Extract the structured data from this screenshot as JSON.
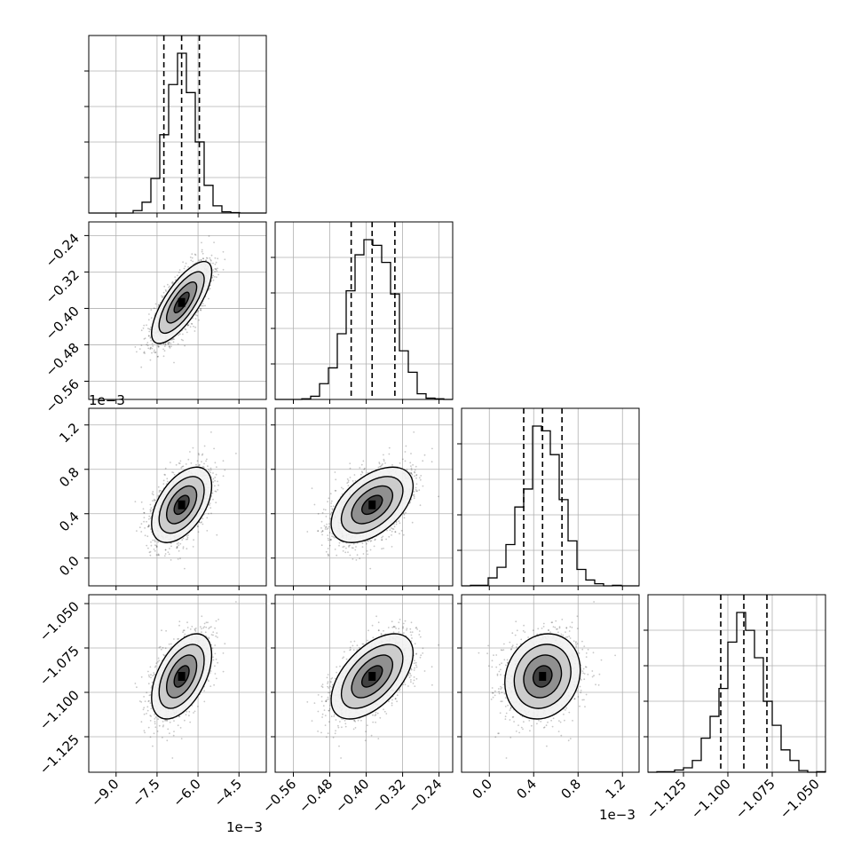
{
  "chart_data": {
    "type": "corner",
    "grid": true,
    "parameters": [
      {
        "range": [
          -10.0,
          -3.5
        ],
        "ticks": [
          -9.0,
          -7.5,
          -6.0,
          -4.5
        ],
        "tick_labels": [
          "−9.0",
          "−7.5",
          "−6.0",
          "−4.5"
        ],
        "offset_label": "1e−3",
        "mean": -6.6,
        "sd": 0.55,
        "quantiles": [
          -7.25,
          -6.6,
          -5.95
        ]
      },
      {
        "range": [
          -0.6,
          -0.21
        ],
        "ticks": [
          -0.56,
          -0.48,
          -0.4,
          -0.32,
          -0.24
        ],
        "tick_labels": [
          "−0.56",
          "−0.48",
          "−0.40",
          "−0.32",
          "−0.24"
        ],
        "offset_label": "1e−3",
        "mean": -0.387,
        "sd": 0.045,
        "quantiles": [
          -0.433,
          -0.387,
          -0.337
        ]
      },
      {
        "range": [
          -0.25,
          1.35
        ],
        "ticks": [
          0.0,
          0.4,
          0.8,
          1.2
        ],
        "tick_labels": [
          "0.0",
          "0.4",
          "0.8",
          "1.2"
        ],
        "offset_label": "1e−3",
        "mean": 0.48,
        "sd": 0.17,
        "quantiles": [
          0.31,
          0.48,
          0.655
        ]
      },
      {
        "range": [
          -1.145,
          -1.045
        ],
        "ticks": [
          -1.125,
          -1.1,
          -1.075,
          -1.05
        ],
        "tick_labels": [
          "−1.125",
          "−1.100",
          "−1.075",
          "−1.050"
        ],
        "offset_label": "",
        "mean": -1.091,
        "sd": 0.012,
        "quantiles": [
          -1.104,
          -1.091,
          -1.078
        ]
      }
    ],
    "correlations": [
      [
        1.0,
        0.75,
        0.5,
        0.5
      ],
      [
        0.75,
        1.0,
        0.5,
        0.55
      ],
      [
        0.5,
        0.5,
        1.0,
        0.15
      ],
      [
        0.5,
        0.55,
        0.15,
        1.0
      ]
    ],
    "histogram_bins": 20
  }
}
